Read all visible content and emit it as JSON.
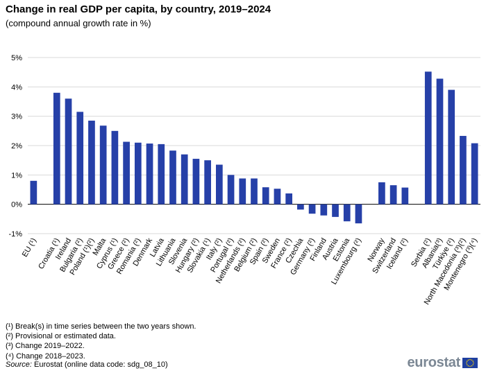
{
  "header": {
    "title": "Change in real GDP per capita, by country, 2019–2024",
    "subtitle": "(compound  annual growth rate in %)"
  },
  "chart_data": {
    "type": "bar",
    "title": "Change in real GDP per capita, by country, 2019–2024",
    "subtitle": "(compound  annual growth rate in %)",
    "xlabel": "",
    "ylabel": "",
    "ylim": [
      -1,
      5
    ],
    "yticks": [
      -1,
      0,
      1,
      2,
      3,
      4,
      5
    ],
    "ytick_labels": [
      "-1%",
      "0%",
      "1%",
      "2%",
      "3%",
      "4%",
      "5%"
    ],
    "grid": true,
    "color": "#2640a8",
    "categories": [
      "EU (¹)",
      "",
      "Croatia (¹)",
      "Ireland",
      "Bulgaria (²)",
      "Poland (¹)(²)",
      "Malta",
      "Cyprus (¹)",
      "Greece (²)",
      "Romania (²)",
      "Denmark",
      "Latvia",
      "Lithuania",
      "Slovenia",
      "Hungary (²)",
      "Slovakia (¹)",
      "Italy (²)",
      "Portugal (²)",
      "Netherlands (²)",
      "Belgium (²)",
      "Spain (²)",
      "Sweden",
      "France (²)",
      "Czechia",
      "Germany (²)",
      "Finland",
      "Austria",
      "Estonia",
      "Luxembourg (²)",
      "",
      "Norway",
      "Switzerland",
      "Iceland (²)",
      "",
      "Serbia (²)",
      "Albania(³)",
      "Türkiye (²)",
      "North Macedonia (³)(²)",
      "Montenegro (³)(⁴)"
    ],
    "values": [
      0.8,
      null,
      3.8,
      3.6,
      3.15,
      2.85,
      2.68,
      2.5,
      2.13,
      2.1,
      2.07,
      2.05,
      1.83,
      1.7,
      1.55,
      1.5,
      1.35,
      1.0,
      0.88,
      0.88,
      0.58,
      0.53,
      0.37,
      -0.18,
      -0.32,
      -0.38,
      -0.43,
      -0.58,
      -0.65,
      null,
      0.75,
      0.65,
      0.57,
      null,
      4.52,
      4.28,
      3.9,
      2.33,
      2.08
    ]
  },
  "footnotes": [
    "(¹) Break(s) in time series between the two years shown.",
    "(²) Provisional or estimated data.",
    "(³) Change 2019–2022.",
    "(⁴) Change 2018–2023."
  ],
  "source": {
    "label": "Source:",
    "text": "Eurostat (online data code: sdg_08_10)"
  },
  "logo": {
    "text": "eurostat",
    "color": "#7b8794"
  }
}
